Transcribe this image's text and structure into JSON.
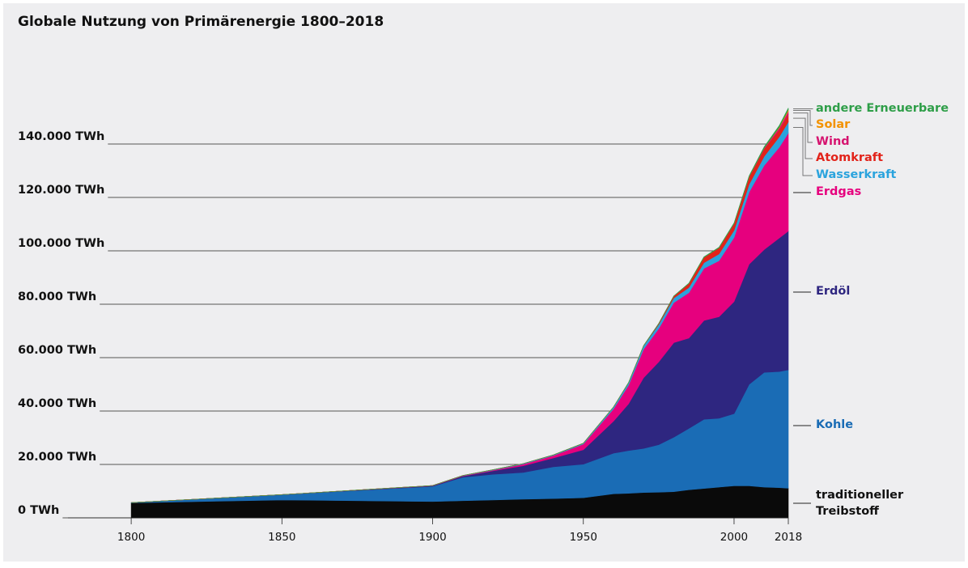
{
  "chart_data": {
    "type": "stacked-area",
    "title": "Globale Nutzung von Primärenergie 1800–2018",
    "x": [
      1800,
      1850,
      1900,
      1910,
      1920,
      1930,
      1940,
      1950,
      1960,
      1965,
      1970,
      1975,
      1980,
      1985,
      1990,
      1995,
      2000,
      2005,
      2010,
      2015,
      2018
    ],
    "xlim": [
      1775,
      2018
    ],
    "xticks": [
      1800,
      1850,
      1900,
      1950,
      2000,
      2018
    ],
    "ylim": [
      0,
      160000
    ],
    "yticks": [
      {
        "value": 0,
        "label": "0 TWh"
      },
      {
        "value": 20000,
        "label": "20.000 TWh"
      },
      {
        "value": 40000,
        "label": "40.000 TWh"
      },
      {
        "value": 60000,
        "label": "60.000 TWh"
      },
      {
        "value": 80000,
        "label": "80.000 TWh"
      },
      {
        "value": 100000,
        "label": "100.000 TWh"
      },
      {
        "value": 120000,
        "label": "120.000 TWh"
      },
      {
        "value": 140000,
        "label": "140.000 TWh"
      }
    ],
    "grid": true,
    "series": [
      {
        "name": "traditioneller Treibstoff",
        "color": "#0a0a0a",
        "values": [
          5600,
          6700,
          6100,
          6400,
          6700,
          7000,
          7200,
          7500,
          9000,
          9200,
          9500,
          9600,
          9800,
          10500,
          11000,
          11500,
          12000,
          12000,
          11500,
          11300,
          11100
        ]
      },
      {
        "name": "Kohle",
        "color": "#1a6cb5",
        "values": [
          100,
          2000,
          5700,
          8800,
          9600,
          10000,
          11900,
          12600,
          15200,
          16000,
          16500,
          17800,
          20400,
          23000,
          25900,
          25800,
          27000,
          38000,
          43000,
          43500,
          44300
        ]
      },
      {
        "name": "Erdöl",
        "color": "#2e2680",
        "values": [
          0,
          0,
          200,
          400,
          1300,
          2500,
          3300,
          5400,
          12000,
          17500,
          26500,
          31000,
          35400,
          33800,
          37000,
          38000,
          42000,
          45000,
          46000,
          50000,
          52000
        ]
      },
      {
        "name": "Erdgas",
        "color": "#e6007e",
        "values": [
          0,
          0,
          60,
          150,
          250,
          600,
          900,
          2100,
          4600,
          7000,
          10700,
          12500,
          15000,
          17000,
          19500,
          21000,
          24000,
          27000,
          31500,
          34000,
          36700
        ]
      },
      {
        "name": "Wasserkraft",
        "color": "#2aa3dd",
        "values": [
          0,
          0,
          50,
          100,
          150,
          200,
          250,
          330,
          690,
          900,
          1200,
          1450,
          1700,
          1950,
          2150,
          2500,
          2650,
          2900,
          3400,
          3900,
          4200
        ]
      },
      {
        "name": "Atomkraft",
        "color": "#e2231a",
        "values": [
          0,
          0,
          0,
          0,
          0,
          0,
          0,
          0,
          0,
          25,
          80,
          380,
          710,
          1500,
          2000,
          2300,
          2500,
          2750,
          2750,
          2550,
          2700
        ]
      },
      {
        "name": "Wind",
        "color": "#d6136f",
        "values": [
          0,
          0,
          0,
          0,
          0,
          0,
          0,
          0,
          0,
          0,
          0,
          0,
          0,
          0,
          4,
          8,
          30,
          100,
          340,
          830,
          1270
        ]
      },
      {
        "name": "Solar",
        "color": "#f39200",
        "values": [
          0,
          0,
          0,
          0,
          0,
          0,
          0,
          0,
          0,
          0,
          0,
          0,
          0,
          0,
          0,
          0,
          1,
          4,
          32,
          250,
          585
        ]
      },
      {
        "name": "andere Erneuerbare",
        "color": "#2e9e48",
        "values": [
          0,
          0,
          0,
          0,
          0,
          0,
          0,
          0,
          0,
          30,
          50,
          70,
          90,
          130,
          180,
          210,
          250,
          330,
          460,
          590,
          630
        ]
      }
    ]
  }
}
